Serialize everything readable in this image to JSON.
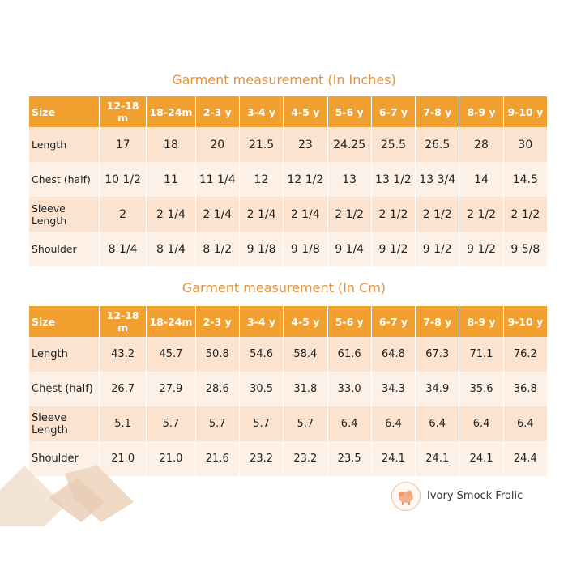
{
  "inches": {
    "title": "Garment measurement (In Inches)",
    "headers": [
      "Size",
      "12-18 m",
      "18-24m",
      "2-3 y",
      "3-4 y",
      "4-5 y",
      "5-6 y",
      "6-7 y",
      "7-8 y",
      "8-9 y",
      "9-10 y"
    ],
    "rows": [
      [
        "Length",
        "17",
        "18",
        "20",
        "21.5",
        "23",
        "24.25",
        "25.5",
        "26.5",
        "28",
        "30"
      ],
      [
        "Chest (half)",
        "10 1/2",
        "11",
        "11 1/4",
        "12",
        "12 1/2",
        "13",
        "13 1/2",
        "13 3/4",
        "14",
        "14.5"
      ],
      [
        "Sleeve Length",
        "2",
        "2 1/4",
        "2 1/4",
        "2 1/4",
        "2 1/4",
        "2 1/2",
        "2 1/2",
        "2 1/2",
        "2 1/2",
        "2 1/2"
      ],
      [
        "Shoulder",
        "8 1/4",
        "8 1/4",
        "8 1/2",
        "9 1/8",
        "9 1/8",
        "9 1/4",
        "9 1/2",
        "9 1/2",
        "9 1/2",
        "9 5/8"
      ]
    ]
  },
  "cm": {
    "title": "Garment measurement (In Cm)",
    "headers": [
      "Size",
      "12-18 m",
      "18-24m",
      "2-3 y",
      "3-4 y",
      "4-5 y",
      "5-6 y",
      "6-7 y",
      "7-8 y",
      "8-9 y",
      "9-10 y"
    ],
    "rows": [
      [
        "Length",
        "43.2",
        "45.7",
        "50.8",
        "54.6",
        "58.4",
        "61.6",
        "64.8",
        "67.3",
        "71.1",
        "76.2"
      ],
      [
        "Chest (half)",
        "26.7",
        "27.9",
        "28.6",
        "30.5",
        "31.8",
        "33.0",
        "34.3",
        "34.9",
        "35.6",
        "36.8"
      ],
      [
        "Sleeve Length",
        "5.1",
        "5.7",
        "5.7",
        "5.7",
        "5.7",
        "6.4",
        "6.4",
        "6.4",
        "6.4",
        "6.4"
      ],
      [
        "Shoulder",
        "21.0",
        "21.0",
        "21.6",
        "23.2",
        "23.2",
        "23.5",
        "24.1",
        "24.1",
        "24.1",
        "24.4"
      ]
    ]
  },
  "brand": {
    "name": "Ivory Smock Frolic",
    "logo_icon": "sheep-logo-icon"
  },
  "colors": {
    "accent": "#e8913a",
    "header_bg": "#f1a030",
    "row_dark": "#fbe3d0",
    "row_light": "#fdf0e6"
  }
}
